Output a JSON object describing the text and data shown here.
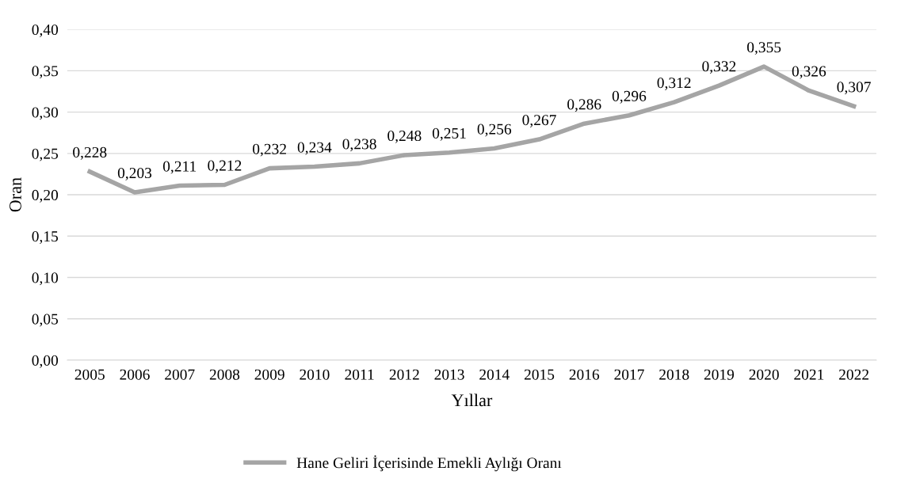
{
  "chart_data": {
    "type": "line",
    "xlabel": "Yıllar",
    "ylabel": "Oran",
    "categories": [
      "2005",
      "2006",
      "2007",
      "2008",
      "2009",
      "2010",
      "2011",
      "2012",
      "2013",
      "2014",
      "2015",
      "2016",
      "2017",
      "2018",
      "2019",
      "2020",
      "2021",
      "2022"
    ],
    "series": [
      {
        "name": "Hane Geliri İçerisinde Emekli Aylığı Oranı",
        "color": "#a5a5a5",
        "values": [
          0.228,
          0.203,
          0.211,
          0.212,
          0.232,
          0.234,
          0.238,
          0.248,
          0.251,
          0.256,
          0.267,
          0.286,
          0.296,
          0.312,
          0.332,
          0.355,
          0.326,
          0.307
        ],
        "value_labels": [
          "0,228",
          "0,203",
          "0,211",
          "0,212",
          "0,232",
          "0,234",
          "0,238",
          "0,248",
          "0,251",
          "0,256",
          "0,267",
          "0,286",
          "0,296",
          "0,312",
          "0,332",
          "0,355",
          "0,326",
          "0,307"
        ]
      }
    ],
    "ylim": [
      0,
      0.4
    ],
    "yticks": [
      {
        "value": 0,
        "label": "0,00"
      },
      {
        "value": 0.05,
        "label": "0,05"
      },
      {
        "value": 0.1,
        "label": "0,10"
      },
      {
        "value": 0.15,
        "label": "0,15"
      },
      {
        "value": 0.2,
        "label": "0,20"
      },
      {
        "value": 0.25,
        "label": "0,25"
      },
      {
        "value": 0.3,
        "label": "0,30"
      },
      {
        "value": 0.35,
        "label": "0,35"
      },
      {
        "value": 0.4,
        "label": "0,40"
      }
    ],
    "grid": "y",
    "legend": "bottom",
    "marker": "none",
    "line_style": "solid"
  }
}
